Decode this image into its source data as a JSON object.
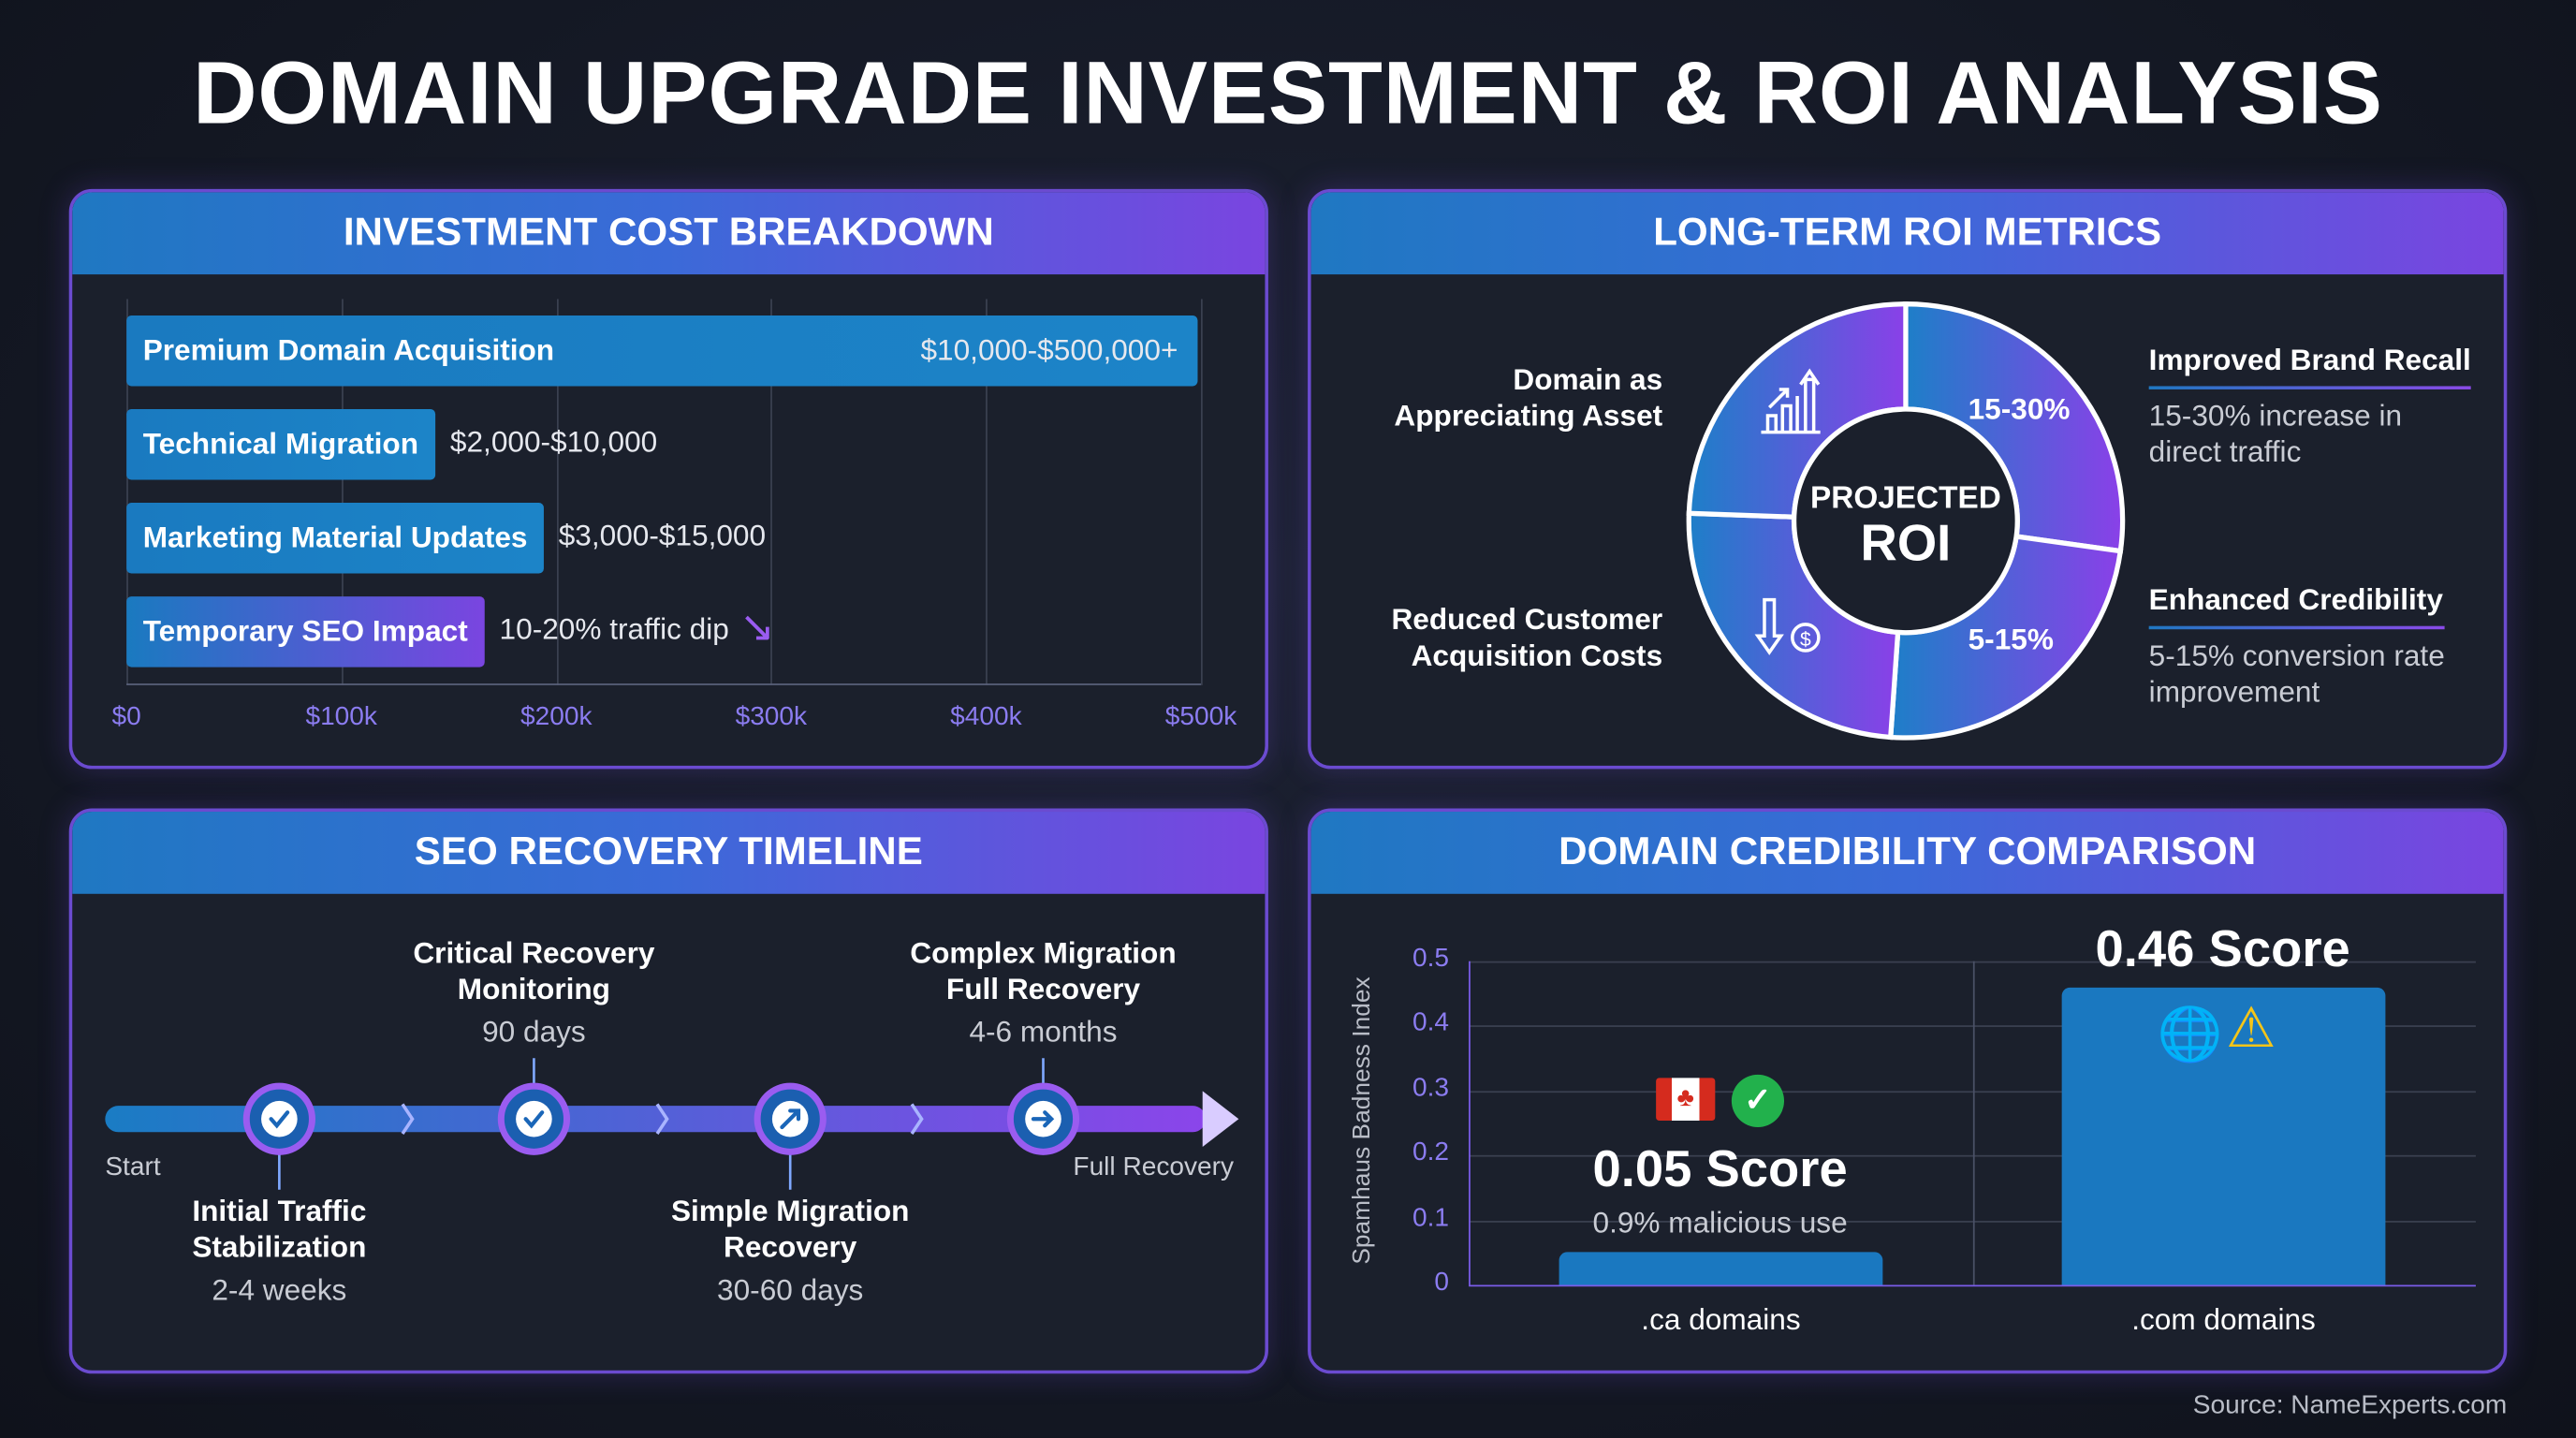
{
  "title": "DOMAIN UPGRADE INVESTMENT & ROI ANALYSIS",
  "colors": {
    "accent_blue": "#1f78c2",
    "accent_purple": "#7a45e0",
    "background": "#131722",
    "panel": "#1b202c"
  },
  "investment": {
    "header": "INVESTMENT COST BREAKDOWN"
  },
  "roi": {
    "header": "LONG-TERM ROI METRICS",
    "center_top": "PROJECTED",
    "center_bottom": "ROI",
    "left": [
      {
        "line1": "Domain as",
        "line2": "Appreciating Asset",
        "icon": "chart-up-icon"
      },
      {
        "line1": "Reduced Customer",
        "line2": "Acquisition Costs",
        "icon": "down-arrow-dollar-icon"
      }
    ],
    "right": [
      {
        "title": "Improved Brand Recall",
        "line1": "15-30% increase in",
        "line2": "direct traffic"
      },
      {
        "title": "Enhanced Credibility",
        "line1": "5-15% conversion rate",
        "line2": "improvement"
      }
    ],
    "segment_labels": [
      "15-30%",
      "5-15%"
    ]
  },
  "timeline": {
    "header": "SEO RECOVERY TIMELINE",
    "start": "Start",
    "end": "Full Recovery",
    "milestones": [
      {
        "title1": "Initial Traffic",
        "title2": "Stabilization",
        "duration": "2-4 weeks",
        "icon": "check-icon",
        "position": "below"
      },
      {
        "title1": "Critical Recovery",
        "title2": "Monitoring",
        "duration": "90 days",
        "icon": "check-icon",
        "position": "above"
      },
      {
        "title1": "Simple Migration",
        "title2": "Recovery",
        "duration": "30-60 days",
        "icon": "arrow-up-right-icon",
        "position": "below"
      },
      {
        "title1": "Complex Migration",
        "title2": "Full Recovery",
        "duration": "4-6 months",
        "icon": "arrow-right-icon",
        "position": "above"
      }
    ]
  },
  "credibility": {
    "header": "DOMAIN CREDIBILITY COMPARISON",
    "ca_score": "0.05 Score",
    "ca_sub": "0.9% malicious use",
    "com_score": "0.46 Score"
  },
  "source": "Source: NameExperts.com",
  "chart_data": [
    {
      "type": "bar",
      "orientation": "horizontal",
      "title": "INVESTMENT COST BREAKDOWN",
      "categories": [
        "Premium Domain Acquisition",
        "Technical Migration",
        "Marketing Material Updates",
        "Temporary SEO Impact"
      ],
      "value_labels": [
        "$10,000-$500,000+",
        "$2,000-$10,000",
        "$3,000-$15,000",
        "10-20% traffic dip"
      ],
      "ranges": [
        [
          10000,
          500000
        ],
        [
          2000,
          10000
        ],
        [
          3000,
          15000
        ],
        null
      ],
      "xticks": [
        "$0",
        "$100k",
        "$200k",
        "$300k",
        "$400k",
        "$500k"
      ],
      "xlim": [
        0,
        500000
      ],
      "grid": true
    },
    {
      "type": "bar",
      "title": "DOMAIN CREDIBILITY COMPARISON",
      "ylabel": "Spamhaus Badness Index",
      "categories": [
        ".ca domains",
        ".com domains"
      ],
      "values": [
        0.05,
        0.46
      ],
      "yticks": [
        "0",
        "0.1",
        "0.2",
        "0.3",
        "0.4",
        "0.5"
      ],
      "ylim": [
        0,
        0.5
      ],
      "grid": true
    }
  ]
}
